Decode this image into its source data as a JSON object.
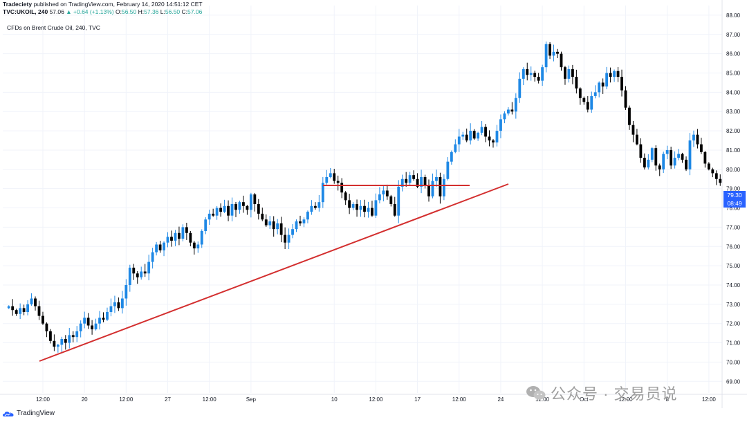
{
  "header": {
    "publisher": "Tradeciety",
    "published_text": "published on TradingView.com, February 14, 2020 14:51:12 CET",
    "symbol": "TVC:UKOIL, 240",
    "last": "57.06",
    "change": "+0.64 (+1.13%)",
    "open_label": "O:",
    "open": "56.50",
    "high_label": "H:",
    "high": "57.36",
    "low_label": "L:",
    "low": "56.50",
    "close_label": "C:",
    "close": "57.06"
  },
  "chart_title": "CFDs on Brent Crude Oil, 240, TVC",
  "price_tags": {
    "last_price": "79.30",
    "countdown": "08:49"
  },
  "footer": {
    "brand": "TradingView"
  },
  "watermark": {
    "text": "公众号 · 交易员说"
  },
  "colors": {
    "up": "#26a69a",
    "candle_up": "#1e88e5",
    "candle_down": "#000000",
    "trendline": "#d32f2f",
    "price_tag_bg": "#2962ff",
    "countdown_bg": "#2962ff"
  },
  "chart_data": {
    "type": "candlestick",
    "y_axis": {
      "ticks": [
        "88.00",
        "87.00",
        "86.00",
        "85.00",
        "84.00",
        "83.00",
        "82.00",
        "81.00",
        "80.00",
        "79.00",
        "78.00",
        "77.00",
        "76.00",
        "75.00",
        "74.00",
        "73.00",
        "72.00",
        "71.00",
        "70.00",
        "69.00"
      ],
      "range": [
        68.4,
        88.5
      ]
    },
    "x_axis": {
      "ticks": [
        "12:00",
        "20",
        "12:00",
        "27",
        "12:00",
        "Sep",
        "10",
        "12:00",
        "17",
        "12:00",
        "24",
        "12:00",
        "Oct",
        "12:00",
        "8",
        "12:00",
        "12:00"
      ],
      "tick_index": [
        9,
        20,
        31,
        42,
        53,
        64,
        86,
        97,
        108,
        119,
        130,
        141,
        152,
        163,
        174,
        185,
        207
      ]
    },
    "close_series": [
      72.9,
      72.7,
      72.5,
      72.8,
      72.6,
      73.0,
      73.3,
      72.9,
      72.4,
      72.0,
      71.6,
      71.1,
      70.8,
      70.9,
      71.2,
      71.0,
      71.4,
      71.3,
      71.6,
      72.0,
      72.3,
      71.9,
      71.7,
      72.0,
      72.3,
      72.2,
      72.6,
      72.9,
      73.1,
      72.8,
      73.3,
      74.0,
      74.9,
      74.6,
      74.4,
      74.7,
      74.6,
      75.2,
      75.7,
      76.1,
      75.8,
      76.2,
      76.5,
      76.3,
      76.7,
      76.4,
      77.0,
      76.7,
      76.2,
      75.9,
      76.1,
      76.8,
      77.4,
      77.7,
      77.6,
      78.0,
      77.8,
      78.1,
      77.6,
      78.2,
      77.9,
      78.3,
      78.1,
      77.9,
      78.7,
      78.2,
      77.7,
      77.4,
      77.1,
      77.3,
      76.9,
      77.2,
      76.6,
      76.2,
      76.6,
      76.9,
      77.3,
      77.2,
      77.4,
      77.8,
      78.1,
      78.0,
      78.3,
      79.3,
      79.6,
      79.8,
      79.4,
      79.3,
      78.8,
      78.4,
      78.0,
      78.2,
      77.9,
      78.1,
      77.8,
      78.0,
      77.6,
      78.4,
      78.7,
      78.9,
      78.6,
      78.2,
      77.6,
      79.1,
      79.5,
      79.3,
      79.7,
      79.5,
      79.1,
      79.6,
      79.2,
      78.6,
      79.4,
      79.6,
      78.6,
      79.5,
      80.4,
      80.9,
      81.3,
      81.7,
      81.8,
      81.5,
      82.0,
      81.6,
      81.9,
      82.2,
      81.7,
      81.5,
      81.4,
      82.0,
      82.6,
      82.9,
      83.1,
      83.0,
      83.7,
      84.7,
      85.2,
      84.9,
      85.0,
      84.8,
      84.6,
      85.3,
      86.5,
      85.9,
      86.1,
      86.0,
      85.3,
      84.7,
      85.2,
      84.8,
      84.2,
      83.7,
      83.5,
      83.1,
      83.8,
      84.0,
      84.5,
      84.3,
      85.0,
      84.8,
      85.1,
      84.8,
      84.1,
      83.2,
      82.3,
      81.8,
      81.3,
      80.6,
      80.1,
      80.5,
      81.1,
      80.2,
      80.0,
      80.8,
      81.0,
      80.2,
      80.6,
      80.8,
      80.5,
      80.0,
      81.5,
      81.8,
      81.3,
      80.9,
      80.3,
      80.0,
      79.8,
      79.5,
      79.3
    ]
  }
}
